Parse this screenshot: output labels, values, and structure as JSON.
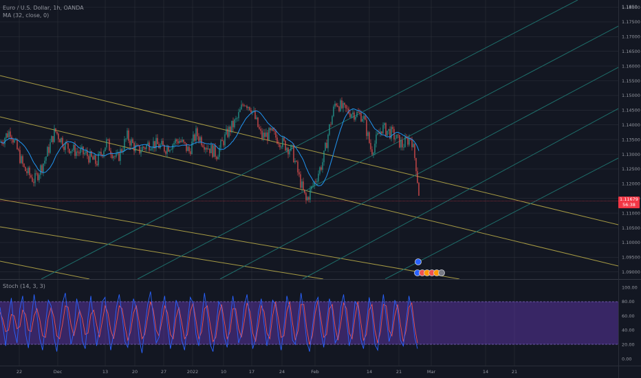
{
  "header": {
    "symbol_line": "Euro / U.S. Dollar, 1h, OANDA",
    "ma_label": "MA (32, close, 0)",
    "stoch_label": "Stoch (14, 3, 3)"
  },
  "price_axis": {
    "ticks": [
      "1.1850",
      "1.18000",
      "1.17500",
      "1.17000",
      "1.16500",
      "1.16000",
      "1.15500",
      "1.15000",
      "1.14500",
      "1.14000",
      "1.13500",
      "1.13000",
      "1.12500",
      "1.12000",
      "1.11500",
      "1.11000",
      "1.10500",
      "1.10000",
      "1.09500",
      "1.09000"
    ],
    "last_price": "1.11679",
    "countdown": "56:38"
  },
  "stoch_axis": {
    "ticks": [
      "100.00",
      "80.00",
      "60.00",
      "40.00",
      "20.00",
      "0.00"
    ]
  },
  "time_axis": {
    "labels": [
      "22",
      "Dec",
      "13",
      "20",
      "27",
      "2022",
      "10",
      "17",
      "24",
      "Feb",
      "14",
      "21",
      "Mar",
      "14",
      "21"
    ]
  },
  "colors": {
    "background": "#131722",
    "grid": "#2a2e39",
    "candle_up": "#26a69a",
    "candle_down": "#ef5350",
    "ma_line": "#2196f3",
    "channel_yellow": "#a89c44",
    "channel_teal": "#1e6e6a",
    "stoch_k": "#2962ff",
    "stoch_d": "#ef5350",
    "stoch_band": "#673ab7",
    "last_price": "#f23645"
  },
  "chart_data": [
    {
      "type": "candlestick",
      "title": "Euro / U.S. Dollar, 1h, OANDA",
      "ylim": [
        1.089,
        1.185
      ],
      "grid": true,
      "x_labels": [
        "22",
        "Dec",
        "13",
        "20",
        "27",
        "2022",
        "10",
        "17",
        "24",
        "Feb",
        "14",
        "21",
        "Mar",
        "14",
        "21"
      ],
      "price_path": [
        [
          0,
          1.134
        ],
        [
          15,
          1.138
        ],
        [
          35,
          1.125
        ],
        [
          50,
          1.121
        ],
        [
          65,
          1.128
        ],
        [
          80,
          1.138
        ],
        [
          95,
          1.133
        ],
        [
          110,
          1.131
        ],
        [
          125,
          1.13
        ],
        [
          140,
          1.127
        ],
        [
          155,
          1.134
        ],
        [
          170,
          1.128
        ],
        [
          185,
          1.136
        ],
        [
          200,
          1.131
        ],
        [
          220,
          1.134
        ],
        [
          240,
          1.132
        ],
        [
          260,
          1.135
        ],
        [
          275,
          1.131
        ],
        [
          285,
          1.137
        ],
        [
          300,
          1.133
        ],
        [
          315,
          1.13
        ],
        [
          330,
          1.137
        ],
        [
          345,
          1.142
        ],
        [
          355,
          1.148
        ],
        [
          365,
          1.146
        ],
        [
          380,
          1.136
        ],
        [
          395,
          1.137
        ],
        [
          410,
          1.134
        ],
        [
          425,
          1.131
        ],
        [
          435,
          1.122
        ],
        [
          445,
          1.114
        ],
        [
          460,
          1.122
        ],
        [
          470,
          1.128
        ],
        [
          478,
          1.138
        ],
        [
          488,
          1.148
        ],
        [
          500,
          1.145
        ],
        [
          515,
          1.144
        ],
        [
          528,
          1.143
        ],
        [
          540,
          1.131
        ],
        [
          555,
          1.139
        ],
        [
          570,
          1.137
        ],
        [
          585,
          1.133
        ],
        [
          598,
          1.136
        ],
        [
          605,
          1.126
        ],
        [
          609,
          1.1168
        ]
      ],
      "moving_average": {
        "name": "MA (32, close, 0)",
        "period": 32
      },
      "last_price": 1.11679
    },
    {
      "type": "line",
      "title": "Stoch (14, 3, 3)",
      "ylim": [
        0,
        100
      ],
      "bands": [
        20,
        80
      ],
      "series": [
        {
          "values": [
            72,
            45,
            18,
            60,
            85,
            40,
            22,
            70,
            88,
            35,
            15,
            55,
            90,
            62,
            28,
            12,
            48,
            82,
            74,
            30,
            10,
            45,
            78,
            92,
            55,
            20,
            38,
            84,
            66,
            25,
            14,
            58,
            88,
            50,
            18,
            40,
            80,
            86,
            42,
            12,
            35,
            72,
            90,
            60,
            24,
            16,
            52,
            84,
            70,
            28,
            8,
            44,
            76,
            94,
            58,
            22,
            30,
            68,
            88,
            46,
            14,
            36,
            82,
            70,
            26,
            12,
            50,
            86,
            78,
            34,
            18,
            56,
            92,
            64,
            20,
            10,
            42,
            80,
            72,
            30,
            16,
            54,
            88,
            60,
            22,
            34,
            74,
            90,
            52,
            14,
            28,
            66,
            84,
            48,
            18,
            40,
            82,
            76,
            32,
            12,
            46,
            88,
            70,
            26,
            20,
            58,
            92,
            62,
            24,
            10,
            44,
            78,
            86,
            38,
            16,
            50,
            84,
            68,
            22,
            30,
            72,
            90,
            54,
            18,
            36,
            80,
            74,
            28,
            14,
            48,
            86,
            64,
            20,
            12,
            56,
            90,
            58,
            24,
            40,
            82,
            70,
            26,
            18,
            52,
            88,
            66,
            30,
            14
          ]
        },
        {
          "values": [
            65,
            55,
            38,
            40,
            62,
            60,
            42,
            45,
            68,
            62,
            40,
            38,
            60,
            70,
            55,
            32,
            30,
            58,
            72,
            58,
            32,
            28,
            48,
            74,
            72,
            48,
            32,
            50,
            68,
            56,
            34,
            36,
            62,
            68,
            48,
            30,
            52,
            74,
            64,
            40,
            28,
            50,
            74,
            70,
            46,
            26,
            38,
            64,
            74,
            52,
            28,
            34,
            58,
            80,
            68,
            40,
            32,
            52,
            74,
            64,
            34,
            28,
            58,
            72,
            50,
            28,
            34,
            66,
            78,
            54,
            28,
            38,
            70,
            74,
            48,
            24,
            30,
            60,
            76,
            52,
            28,
            38,
            70,
            70,
            42,
            30,
            52,
            78,
            66,
            36,
            24,
            48,
            74,
            66,
            36,
            28,
            60,
            80,
            56,
            30,
            32,
            66,
            80,
            50,
            26,
            40,
            76,
            76,
            42,
            20,
            32,
            64,
            82,
            56,
            30,
            34,
            70,
            76,
            44,
            26,
            50,
            78,
            70,
            36,
            28,
            58,
            80,
            52,
            26,
            34,
            68,
            76,
            40,
            22,
            38,
            76,
            74,
            40,
            32,
            60,
            76,
            48,
            24,
            40,
            72,
            78,
            44,
            22
          ]
        }
      ]
    }
  ]
}
